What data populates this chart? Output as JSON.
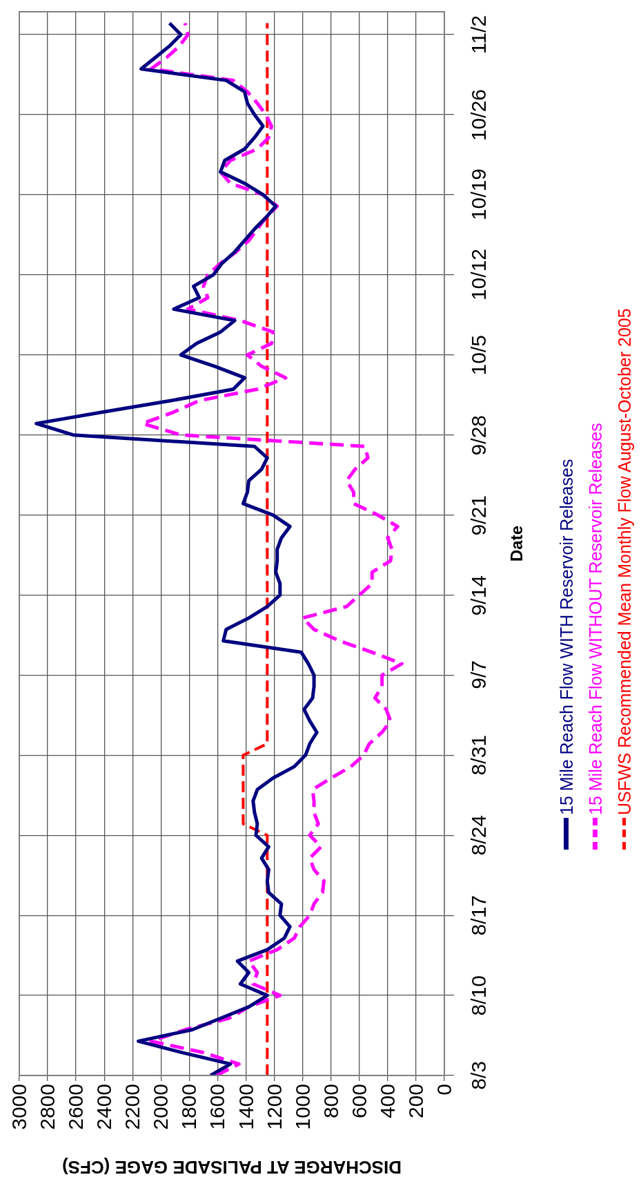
{
  "chart_data": {
    "type": "line",
    "orientation": "horizontal",
    "xlabel": "DISCHARGE AT PALISADE GAGE (CFS)",
    "ylabel": "Date",
    "x": [
      "--08-03",
      "--08-04",
      "--08-05",
      "--08-06",
      "--08-07",
      "--08-08",
      "--08-09",
      "--08-10",
      "--08-11",
      "--08-12",
      "--08-13",
      "--08-14",
      "--08-15",
      "--08-16",
      "--08-17",
      "--08-18",
      "--08-19",
      "--08-20",
      "--08-21",
      "--08-22",
      "--08-23",
      "--08-24",
      "--08-25",
      "--08-26",
      "--08-27",
      "--08-28",
      "--08-29",
      "--08-30",
      "--08-31",
      "--09-01",
      "--09-02",
      "--09-03",
      "--09-04",
      "--09-05",
      "--09-06",
      "--09-07",
      "--09-08",
      "--09-09",
      "--09-10",
      "--09-11",
      "--09-12",
      "--09-13",
      "--09-14",
      "--09-15",
      "--09-16",
      "--09-17",
      "--09-18",
      "--09-19",
      "--09-20",
      "--09-21",
      "--09-22",
      "--09-23",
      "--09-24",
      "--09-25",
      "--09-26",
      "--09-27",
      "--09-28",
      "--09-29",
      "--09-30",
      "--10-01",
      "--10-02",
      "--10-03",
      "--10-04",
      "--10-05",
      "--10-06",
      "--10-07",
      "--10-08",
      "--10-09",
      "--10-10",
      "--10-11",
      "--10-12",
      "--10-13",
      "--10-14",
      "--10-15",
      "--10-16",
      "--10-17",
      "--10-18",
      "--10-19",
      "--10-20",
      "--10-21",
      "--10-22",
      "--10-23",
      "--10-24",
      "--10-25",
      "--10-26",
      "--10-27",
      "--10-28",
      "--10-29",
      "--10-30",
      "--10-31",
      "--11-01",
      "--11-02",
      "--11-03"
    ],
    "series": [
      {
        "name": "15 Mile Reach Flow WITH Reservoir Releases",
        "color": "#000080",
        "line_style": "solid",
        "values": [
          1650,
          1510,
          1850,
          2160,
          1780,
          1580,
          1380,
          1250,
          1440,
          1380,
          1460,
          1250,
          1130,
          1090,
          1160,
          1150,
          1240,
          1250,
          1240,
          1290,
          1240,
          1330,
          1320,
          1340,
          1350,
          1320,
          1210,
          1060,
          980,
          950,
          900,
          950,
          990,
          930,
          920,
          920,
          960,
          1010,
          1560,
          1540,
          1380,
          1250,
          1160,
          1160,
          1190,
          1180,
          1180,
          1150,
          1090,
          1210,
          1420,
          1390,
          1380,
          1290,
          1250,
          1340,
          2620,
          2880,
          2410,
          1930,
          1490,
          1410,
          1620,
          1860,
          1750,
          1580,
          1480,
          1910,
          1730,
          1770,
          1630,
          1570,
          1480,
          1410,
          1340,
          1260,
          1190,
          1280,
          1410,
          1580,
          1550,
          1410,
          1340,
          1280,
          1340,
          1390,
          1410,
          1540,
          2140,
          2040,
          1940,
          1860,
          1940
        ]
      },
      {
        "name": "15 Mile Reach Flow WITHOUT Reservoir Releases",
        "color": "#ff00ff",
        "line_style": "dashed",
        "values": [
          1610,
          1450,
          1700,
          2070,
          1830,
          1520,
          1380,
          1160,
          1350,
          1320,
          1380,
          1180,
          1060,
          1020,
          950,
          920,
          860,
          850,
          920,
          950,
          870,
          950,
          890,
          920,
          920,
          930,
          800,
          660,
          570,
          530,
          440,
          380,
          410,
          490,
          440,
          440,
          300,
          510,
          740,
          920,
          1000,
          690,
          600,
          510,
          510,
          380,
          370,
          400,
          330,
          470,
          640,
          640,
          690,
          630,
          540,
          560,
          1860,
          2130,
          1910,
          1730,
          1320,
          1120,
          1290,
          1390,
          1220,
          1210,
          1440,
          1810,
          1670,
          1700,
          1670,
          1580,
          1470,
          1380,
          1320,
          1260,
          1180,
          1280,
          1510,
          1580,
          1510,
          1320,
          1240,
          1220,
          1260,
          1320,
          1390,
          1490,
          2070,
          1960,
          1870,
          1810,
          1830
        ]
      },
      {
        "name": "USFWS Recommended Mean Monthly Flow August-October 2005",
        "color": "#ff0000",
        "line_style": "dashed",
        "values": [
          1250,
          1250,
          1250,
          1250,
          1250,
          1250,
          1250,
          1250,
          1250,
          1250,
          1250,
          1250,
          1250,
          1250,
          1250,
          1250,
          1250,
          1250,
          1250,
          1250,
          1250,
          1250,
          1420,
          1420,
          1420,
          1420,
          1420,
          1420,
          1420,
          1250,
          1250,
          1250,
          1250,
          1250,
          1250,
          1250,
          1250,
          1250,
          1250,
          1250,
          1250,
          1250,
          1250,
          1250,
          1250,
          1250,
          1250,
          1250,
          1250,
          1250,
          1250,
          1250,
          1250,
          1250,
          1250,
          1250,
          1250,
          1250,
          1250,
          1250,
          1250,
          1250,
          1250,
          1250,
          1250,
          1250,
          1250,
          1250,
          1250,
          1250,
          1250,
          1250,
          1250,
          1250,
          1250,
          1250,
          1250,
          1250,
          1250,
          1250,
          1250,
          1250,
          1250,
          1250,
          1250,
          1250,
          1250,
          1250,
          1250,
          1250,
          1250,
          1250,
          1250
        ]
      }
    ],
    "ylim": [
      "--08-03",
      "--11-04"
    ],
    "yticks": [
      {
        "value": "--08-03",
        "label": "8/3"
      },
      {
        "value": "--08-10",
        "label": "8/10"
      },
      {
        "value": "--08-17",
        "label": "8/17"
      },
      {
        "value": "--08-24",
        "label": "8/24"
      },
      {
        "value": "--08-31",
        "label": "8/31"
      },
      {
        "value": "--09-07",
        "label": "9/7"
      },
      {
        "value": "--09-14",
        "label": "9/14"
      },
      {
        "value": "--09-21",
        "label": "9/21"
      },
      {
        "value": "--09-28",
        "label": "9/28"
      },
      {
        "value": "--10-05",
        "label": "10/5"
      },
      {
        "value": "--10-12",
        "label": "10/12"
      },
      {
        "value": "--10-19",
        "label": "10/19"
      },
      {
        "value": "--10-26",
        "label": "10/26"
      },
      {
        "value": "--11-02",
        "label": "11/2"
      }
    ],
    "xlim": [
      3000,
      0
    ],
    "xticks": [
      0,
      200,
      400,
      600,
      800,
      1000,
      1200,
      1400,
      1600,
      1800,
      2000,
      2200,
      2400,
      2600,
      2800,
      3000
    ],
    "grid": true,
    "legend": "bottom",
    "marker": "none"
  }
}
